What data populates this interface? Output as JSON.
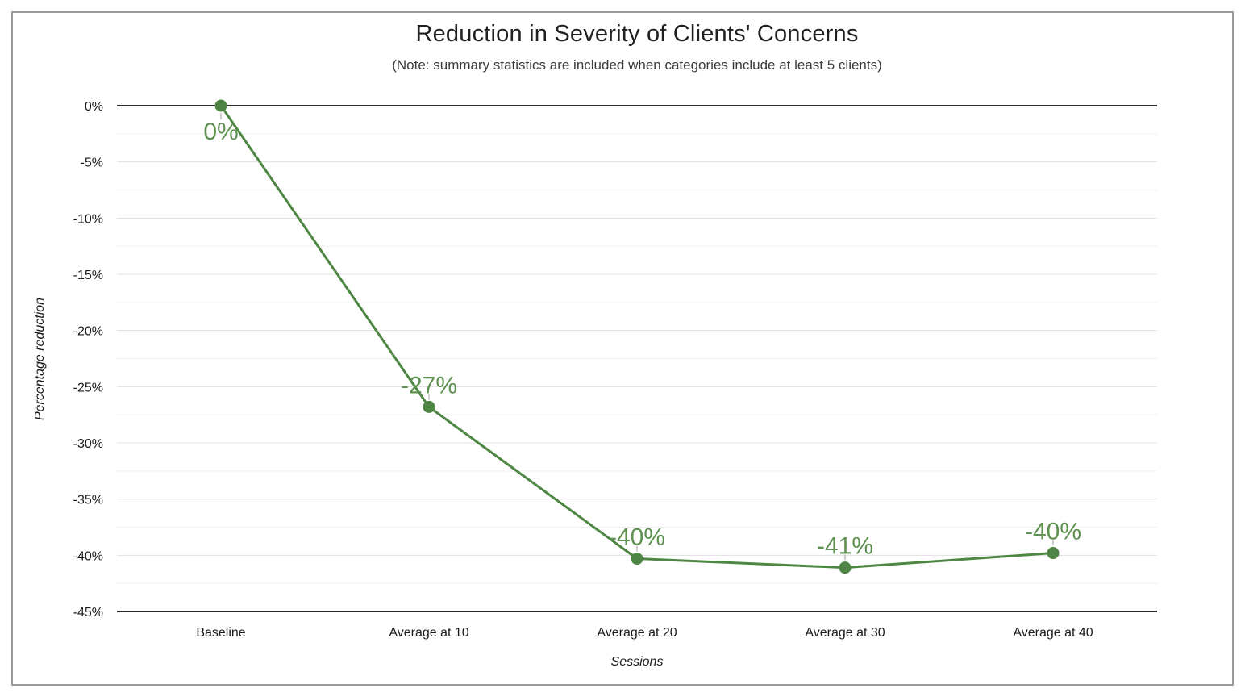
{
  "frame": {
    "border_color": "#9b9b9b",
    "background": "#ffffff"
  },
  "chart_data": {
    "type": "line",
    "title": "Reduction in Severity of Clients' Concerns",
    "subtitle": "(Note: summary statistics are included when categories include at least 5 clients)",
    "xlabel": "Sessions",
    "ylabel": "Percentage reduction",
    "categories": [
      "Baseline",
      "Average at 10",
      "Average at 20",
      "Average at 30",
      "Average at 40"
    ],
    "series": [
      {
        "values": [
          0,
          -27,
          -40,
          -41,
          -40
        ],
        "values_precise": [
          0,
          -26.8,
          -40.3,
          -41.1,
          -39.8
        ],
        "point_labels": [
          "0%",
          "-27%",
          "-40%",
          "-41%",
          "-40%"
        ],
        "label_placement": [
          "below",
          "above",
          "above",
          "above",
          "above"
        ],
        "line_color": "#4e8743",
        "point_color": "#4e8544",
        "label_color": "#5e9150"
      }
    ],
    "y_axis": {
      "ticks": [
        "0%",
        "-5%",
        "-10%",
        "-15%",
        "-20%",
        "-25%",
        "-30%",
        "-35%",
        "-40%",
        "-45%"
      ],
      "tick_values": [
        0,
        -5,
        -10,
        -15,
        -20,
        -25,
        -30,
        -35,
        -40,
        -45
      ],
      "min": -45,
      "max": 0,
      "major_step": 5,
      "minor_step": 2.5
    },
    "grid": {
      "major_color": "#e0e0e0",
      "minor_color": "#efefef",
      "zero_line_color": "#2b2b2b",
      "axis_line_color": "#2b2b2b",
      "stem_color": "#bdbdbd",
      "tick_label_color": "#1a1a1a"
    },
    "legend": "none",
    "ylim": [
      -45,
      0
    ]
  }
}
